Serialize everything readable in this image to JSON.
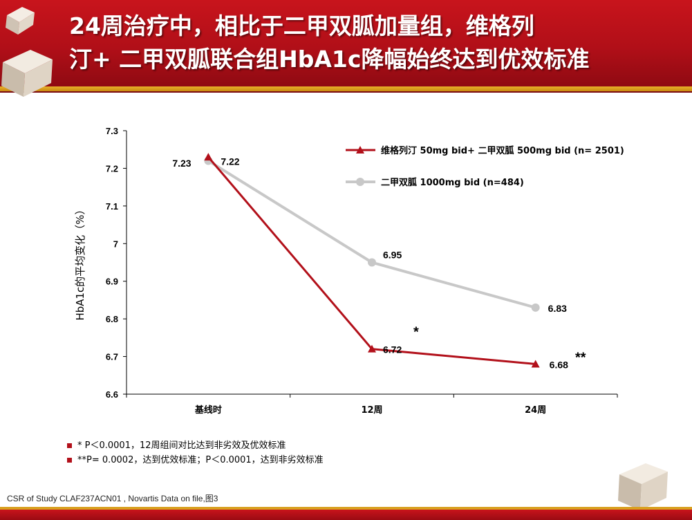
{
  "header": {
    "title_line1": "24周治疗中，相比于二甲双胍加量组，维格列",
    "title_line2": "汀+ 二甲双胍联合组HbA1c降幅始终达到优效标准",
    "colors": {
      "primary": "#b10f18",
      "accent": "#d9a020"
    }
  },
  "chart_data": {
    "type": "line",
    "title": "",
    "xlabel": "",
    "ylabel": "HbA1c的平均变化（%）",
    "categories": [
      "基线时",
      "12周",
      "24周"
    ],
    "ylim": [
      6.6,
      7.3
    ],
    "yticks": [
      "6.6",
      "6.7",
      "6.8",
      "6.9",
      "7",
      "7.1",
      "7.2",
      "7.3"
    ],
    "grid": false,
    "legend_position": "top-right",
    "series": [
      {
        "name": "维格列汀 50mg bid+ 二甲双胍 500mg bid (n= 2501)",
        "values": [
          7.23,
          6.72,
          6.68
        ],
        "labels": [
          "7.23",
          "6.72",
          "6.68"
        ],
        "color": "#b2101a",
        "marker": "triangle"
      },
      {
        "name": "二甲双胍 1000mg bid (n=484)",
        "values": [
          7.22,
          6.95,
          6.83
        ],
        "labels": [
          "7.22",
          "6.95",
          "6.83"
        ],
        "color": "#c8c8c8",
        "marker": "circle"
      }
    ],
    "annotations": [
      "*",
      "**"
    ]
  },
  "footnotes": [
    "* P＜0.0001，12周组间对比达到非劣效及优效标准",
    "**P= 0.0002，达到优效标准；P＜0.0001，达到非劣效标准"
  ],
  "source": "CSR of Study CLAF237ACN01 , Novartis Data on file,图3"
}
